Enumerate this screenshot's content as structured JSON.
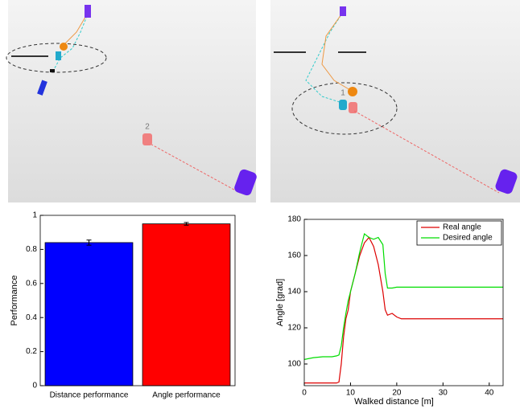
{
  "scenes": [
    {
      "label": "2"
    },
    {
      "label": "1"
    }
  ],
  "chart_data": [
    {
      "type": "bar",
      "ylabel": "Performance",
      "categories": [
        "Distance performance",
        "Angle performance"
      ],
      "values": [
        0.84,
        0.95
      ],
      "errors": [
        0.015,
        0.008
      ],
      "colors": [
        "#0000ff",
        "#ff0000"
      ],
      "ylim": [
        0,
        1
      ],
      "yticks": [
        0,
        0.2,
        0.4,
        0.6,
        0.8,
        1
      ]
    },
    {
      "type": "line",
      "xlabel": "Walked distance [m]",
      "ylabel": "Angle [grad]",
      "x": [
        0,
        2,
        4,
        6,
        7,
        7.5,
        8,
        8.5,
        9,
        9.5,
        10,
        11,
        12,
        13,
        14,
        15,
        16,
        17,
        17.5,
        18,
        19,
        20,
        21,
        22,
        25,
        30,
        35,
        40,
        43
      ],
      "series": [
        {
          "name": "Real angle",
          "color": "#dd0000",
          "values": [
            89.5,
            89.5,
            89.5,
            89.5,
            89.5,
            90,
            100,
            115,
            125,
            130,
            140,
            150,
            160,
            167,
            170,
            165,
            155,
            140,
            130,
            127,
            128,
            126,
            125,
            125,
            125,
            125,
            125,
            125,
            125
          ]
        },
        {
          "name": "Desired angle",
          "color": "#00dd00",
          "values": [
            102.5,
            103.5,
            104,
            104,
            104.5,
            105,
            110,
            120,
            128,
            135,
            140,
            150,
            162,
            172,
            170,
            169,
            170,
            166,
            150,
            142,
            142,
            142.5,
            142.5,
            142.5,
            142.5,
            142.5,
            142.5,
            142.5,
            142.5
          ]
        }
      ],
      "xlim": [
        0,
        43
      ],
      "xticks": [
        0,
        10,
        20,
        30,
        40
      ],
      "ylim": [
        88,
        180
      ],
      "yticks": [
        100,
        120,
        140,
        160,
        180
      ],
      "legend": "top-right"
    }
  ]
}
